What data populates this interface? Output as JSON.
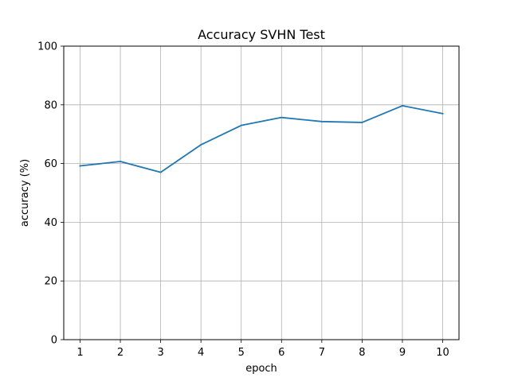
{
  "chart_data": {
    "type": "line",
    "title": "Accuracy SVHN Test",
    "xlabel": "epoch",
    "ylabel": "accuracy (%)",
    "x": [
      1,
      2,
      3,
      4,
      5,
      6,
      7,
      8,
      9,
      10
    ],
    "xticks": [
      "1",
      "2",
      "3",
      "4",
      "5",
      "6",
      "7",
      "8",
      "9",
      "10"
    ],
    "yticks": [
      "0",
      "20",
      "40",
      "60",
      "80",
      "100"
    ],
    "ylim": [
      0,
      100
    ],
    "grid": true,
    "legend": "none",
    "series": [
      {
        "color": "#1f77b4",
        "values": [
          59.2,
          60.7,
          57.0,
          66.4,
          73.0,
          75.7,
          74.3,
          74.0,
          79.7,
          77.0
        ]
      }
    ]
  }
}
